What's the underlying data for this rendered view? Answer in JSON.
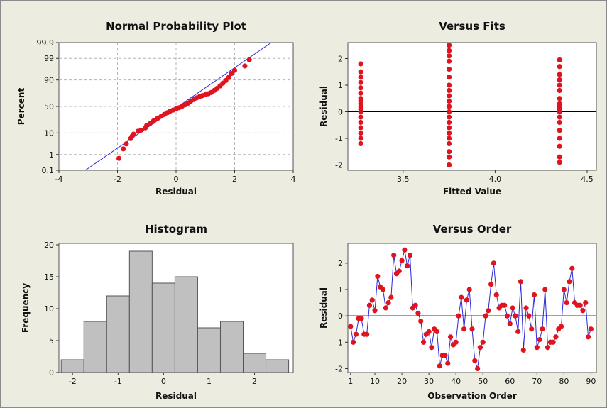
{
  "colors": {
    "point": "#e0141e",
    "line": "#2a2ad6",
    "bar": "#c0c0c0",
    "bar_edge": "#555555",
    "background": "#ecece1",
    "grid": "#b4b4b4"
  },
  "chart_data": [
    {
      "type": "scatter",
      "title": "Normal Probability Plot",
      "xlabel": "Residual",
      "ylabel": "Percent",
      "x_ticks": [
        "-4",
        "-2",
        "0",
        "2",
        "4"
      ],
      "y_ticks": [
        "0.1",
        "1",
        "10",
        "50",
        "90",
        "99",
        "99.9"
      ],
      "xlim": [
        -4,
        4
      ],
      "ylim": [
        0.1,
        99.9
      ],
      "y_scale": "normal probability",
      "grid": true,
      "fit_line": {
        "x": [
          -3.1,
          3.25
        ],
        "y": [
          0.1,
          99.9
        ]
      },
      "points": [
        [
          -1.95,
          0.6
        ],
        [
          -1.8,
          2.0
        ],
        [
          -1.7,
          3.5
        ],
        [
          -1.55,
          6.0
        ],
        [
          -1.5,
          7.5
        ],
        [
          -1.45,
          9.0
        ],
        [
          -1.3,
          11.5
        ],
        [
          -1.2,
          12.5
        ],
        [
          -1.05,
          15.0
        ],
        [
          -1.0,
          18.0
        ],
        [
          -0.9,
          20.0
        ],
        [
          -0.8,
          23.0
        ],
        [
          -0.75,
          25.0
        ],
        [
          -0.65,
          27.5
        ],
        [
          -0.6,
          29.0
        ],
        [
          -0.5,
          32.0
        ],
        [
          -0.4,
          35.0
        ],
        [
          -0.3,
          38.0
        ],
        [
          -0.2,
          41.0
        ],
        [
          -0.1,
          43.0
        ],
        [
          0.0,
          45.0
        ],
        [
          0.1,
          47.5
        ],
        [
          0.2,
          50.0
        ],
        [
          0.3,
          53.0
        ],
        [
          0.4,
          56.0
        ],
        [
          0.5,
          60.0
        ],
        [
          0.6,
          63.0
        ],
        [
          0.7,
          66.0
        ],
        [
          0.8,
          68.0
        ],
        [
          0.9,
          70.0
        ],
        [
          1.0,
          71.5
        ],
        [
          1.1,
          73.0
        ],
        [
          1.2,
          75.0
        ],
        [
          1.3,
          78.0
        ],
        [
          1.4,
          81.0
        ],
        [
          1.5,
          84.0
        ],
        [
          1.6,
          87.0
        ],
        [
          1.7,
          89.5
        ],
        [
          1.8,
          92.0
        ],
        [
          1.9,
          94.5
        ],
        [
          2.0,
          96.0
        ],
        [
          2.35,
          97.5
        ],
        [
          2.5,
          98.8
        ]
      ]
    },
    {
      "type": "scatter",
      "title": "Versus Fits",
      "xlabel": "Fitted Value",
      "ylabel": "Residual",
      "x_ticks": [
        "3.5",
        "4.0",
        "4.5"
      ],
      "y_ticks": [
        "-2",
        "-1",
        "0",
        "1",
        "2"
      ],
      "xlim": [
        3.2,
        4.55
      ],
      "ylim": [
        -2.2,
        2.6
      ],
      "reference_line_y": 0,
      "groups": [
        {
          "x": 3.27,
          "y": [
            -1.2,
            -1.0,
            -0.8,
            -0.6,
            -0.4,
            -0.2,
            0.0,
            0.1,
            0.2,
            0.3,
            0.4,
            0.5,
            0.7,
            0.9,
            1.1,
            1.3,
            1.5,
            1.8
          ]
        },
        {
          "x": 3.75,
          "y": [
            -2.0,
            -1.7,
            -1.5,
            -1.2,
            -1.0,
            -0.8,
            -0.6,
            -0.4,
            -0.2,
            0.0,
            0.2,
            0.4,
            0.6,
            0.8,
            1.0,
            1.3,
            1.6,
            1.9,
            2.1,
            2.3,
            2.5
          ]
        },
        {
          "x": 4.35,
          "y": [
            -1.9,
            -1.7,
            -1.3,
            -1.0,
            -0.7,
            -0.4,
            -0.2,
            0.0,
            0.1,
            0.2,
            0.3,
            0.5,
            0.8,
            1.0,
            1.2,
            1.4,
            1.7,
            1.95
          ]
        }
      ]
    },
    {
      "type": "bar",
      "title": "Histogram",
      "xlabel": "Residual",
      "ylabel": "Frequency",
      "x_ticks": [
        "-2",
        "-1",
        "0",
        "1",
        "2"
      ],
      "y_ticks": [
        "0",
        "5",
        "10",
        "15",
        "20"
      ],
      "xlim": [
        -2.3,
        2.85
      ],
      "ylim": [
        0,
        20
      ],
      "bin_edges": [
        -2.25,
        -1.75,
        -1.25,
        -0.75,
        -0.25,
        0.25,
        0.75,
        1.25,
        1.75,
        2.25,
        2.75
      ],
      "values": [
        2,
        8,
        12,
        19,
        14,
        15,
        7,
        8,
        3,
        2
      ]
    },
    {
      "type": "line",
      "title": "Versus Order",
      "xlabel": "Observation Order",
      "ylabel": "Residual",
      "x_ticks": [
        "1",
        "10",
        "20",
        "30",
        "40",
        "50",
        "60",
        "70",
        "80",
        "90"
      ],
      "y_ticks": [
        "-2",
        "-1",
        "0",
        "1",
        "2"
      ],
      "xlim": [
        0,
        92
      ],
      "ylim": [
        -2.15,
        2.75
      ],
      "reference_line_y": 0,
      "values": [
        -0.4,
        -1.0,
        -0.7,
        -0.1,
        -0.1,
        -0.7,
        -0.7,
        0.4,
        0.6,
        0.2,
        1.5,
        1.1,
        1.0,
        0.3,
        0.5,
        0.7,
        2.3,
        1.6,
        1.7,
        2.1,
        2.5,
        1.9,
        2.3,
        0.3,
        0.4,
        0.1,
        -0.2,
        -1.0,
        -0.7,
        -0.6,
        -1.2,
        -0.5,
        -0.6,
        -1.9,
        -1.5,
        -1.5,
        -1.8,
        -0.8,
        -1.1,
        -1.0,
        0.0,
        0.7,
        -0.5,
        0.6,
        1.0,
        -0.5,
        -1.7,
        -2.0,
        -1.2,
        -1.0,
        0.0,
        0.2,
        1.2,
        2.0,
        0.8,
        0.3,
        0.4,
        0.4,
        0.0,
        -0.3,
        0.3,
        0.0,
        -0.6,
        1.3,
        -1.3,
        0.3,
        0.0,
        -0.5,
        0.8,
        -1.2,
        -0.9,
        -0.5,
        1.0,
        -1.2,
        -1.0,
        -1.0,
        -0.8,
        -0.5,
        -0.4,
        1.0,
        0.5,
        1.3,
        1.8,
        0.5,
        0.4,
        0.4,
        0.2,
        0.5,
        -0.8,
        -0.5
      ]
    }
  ]
}
